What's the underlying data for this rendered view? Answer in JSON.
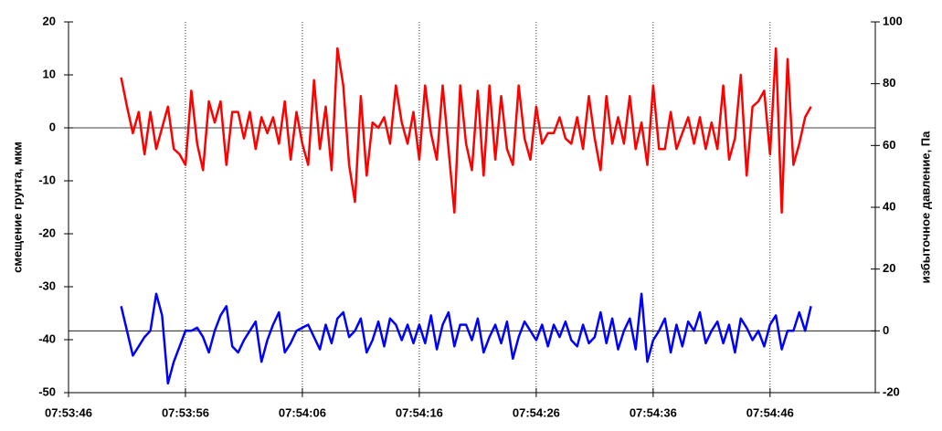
{
  "chart_data": {
    "type": "line",
    "ylabel": "смещение грунта, мкм",
    "y2label": "избыточное давление, Па",
    "x": [
      4.5,
      5,
      5.5,
      6,
      6.5,
      7,
      7.5,
      8,
      8.5,
      9,
      9.5,
      10,
      10.5,
      11,
      11.5,
      12,
      12.5,
      13,
      13.5,
      14,
      14.5,
      15,
      15.5,
      16,
      16.5,
      17,
      17.5,
      18,
      18.5,
      19,
      19.5,
      20,
      20.5,
      21,
      21.5,
      22,
      22.5,
      23,
      23.5,
      24,
      24.5,
      25,
      25.5,
      26,
      26.5,
      27,
      27.5,
      28,
      28.5,
      29,
      29.5,
      30,
      30.5,
      31,
      31.5,
      32,
      32.5,
      33,
      33.5,
      34,
      34.5,
      35,
      35.5,
      36,
      36.5,
      37,
      37.5,
      38,
      38.5,
      39,
      39.5,
      40,
      40.5,
      41,
      41.5,
      42,
      42.5,
      43,
      43.5,
      44,
      44.5,
      45,
      45.5,
      46,
      46.5,
      47,
      47.5,
      48,
      48.5,
      49,
      49.5,
      50,
      50.5,
      51,
      51.5,
      52,
      52.5,
      53,
      53.5,
      54,
      54.5,
      55,
      55.5,
      56,
      56.5,
      57,
      57.5,
      58,
      58.5,
      59,
      59.5,
      60,
      60.5,
      61,
      61.5,
      62,
      62.5,
      63,
      63.5
    ],
    "series": [
      {
        "color": "#ff0000",
        "axis": "y",
        "values": [
          9.5,
          4,
          -1,
          3,
          -5,
          3,
          -4,
          0,
          4,
          -4,
          -5,
          -7,
          7,
          -3,
          -8,
          5,
          1,
          5,
          -7,
          3,
          3,
          -2,
          3,
          -4,
          2,
          -1,
          2,
          -3,
          5,
          -6,
          3,
          -3,
          -7,
          9,
          -4,
          4,
          -8,
          15,
          8,
          -7,
          -14,
          6,
          -9,
          1,
          0,
          2,
          -3,
          8,
          1,
          -3,
          3,
          -6,
          8,
          -1,
          -6,
          8,
          -4,
          -16,
          8,
          -3,
          -8,
          7,
          -9,
          8,
          -6,
          6,
          -4,
          -7,
          8,
          -2,
          -6,
          4,
          -3,
          -1,
          -1,
          2,
          -2,
          -3,
          2,
          -4,
          6,
          -2,
          -8,
          6,
          -3,
          2,
          -3,
          6,
          -4,
          1,
          -7,
          8,
          -4,
          -4,
          3,
          -4,
          -1,
          2,
          -3,
          2,
          -4,
          1,
          -4,
          8,
          -6,
          -2,
          10,
          -9,
          4,
          5,
          7,
          -5,
          15,
          -16,
          13,
          -7,
          -3,
          2,
          4
        ]
      },
      {
        "color": "#0000ff",
        "axis": "y2",
        "values": [
          8,
          0,
          -8,
          -5,
          -2,
          0,
          12,
          5,
          -17,
          -10,
          -5,
          0,
          0,
          1,
          -2,
          -7,
          0,
          5,
          8,
          -5,
          -7,
          -3,
          0,
          3,
          -10,
          -3,
          2,
          6,
          -7,
          -4,
          0,
          1,
          2,
          -2,
          -6,
          2,
          -4,
          4,
          6,
          -2,
          0,
          4,
          -7,
          -3,
          3,
          -5,
          4,
          2,
          -3,
          2,
          -4,
          2,
          -4,
          5,
          -6,
          2,
          6,
          -5,
          2,
          2,
          -3,
          4,
          -7,
          -2,
          2,
          -4,
          3,
          -9,
          -2,
          3,
          0,
          -3,
          2,
          -5,
          2,
          -2,
          3,
          -3,
          -5,
          2,
          -4,
          -2,
          6,
          -4,
          4,
          -6,
          0,
          4,
          -6,
          12,
          -10,
          -3,
          0,
          4,
          -7,
          2,
          -5,
          3,
          0,
          6,
          -4,
          0,
          3,
          -4,
          2,
          -7,
          4,
          1,
          -3,
          0,
          -5,
          2,
          5,
          -6,
          0,
          0,
          6,
          0,
          8
        ]
      }
    ],
    "xlim": [
      0,
      69
    ],
    "xticks": [
      {
        "value": 0,
        "label": "07:53:46"
      },
      {
        "value": 10,
        "label": "07:53:56"
      },
      {
        "value": 20,
        "label": "07:54:06"
      },
      {
        "value": 30,
        "label": "07:54:16"
      },
      {
        "value": 40,
        "label": "07:54:26"
      },
      {
        "value": 50,
        "label": "07:54:36"
      },
      {
        "value": 60,
        "label": "07:54:46"
      }
    ],
    "ylim": [
      -50,
      20
    ],
    "yticks": [
      -50,
      -40,
      -30,
      -20,
      -10,
      0,
      10,
      20
    ],
    "y2lim": [
      -20,
      100
    ],
    "y2ticks": [
      -20,
      0,
      20,
      40,
      60,
      80,
      100
    ],
    "grid": true
  }
}
